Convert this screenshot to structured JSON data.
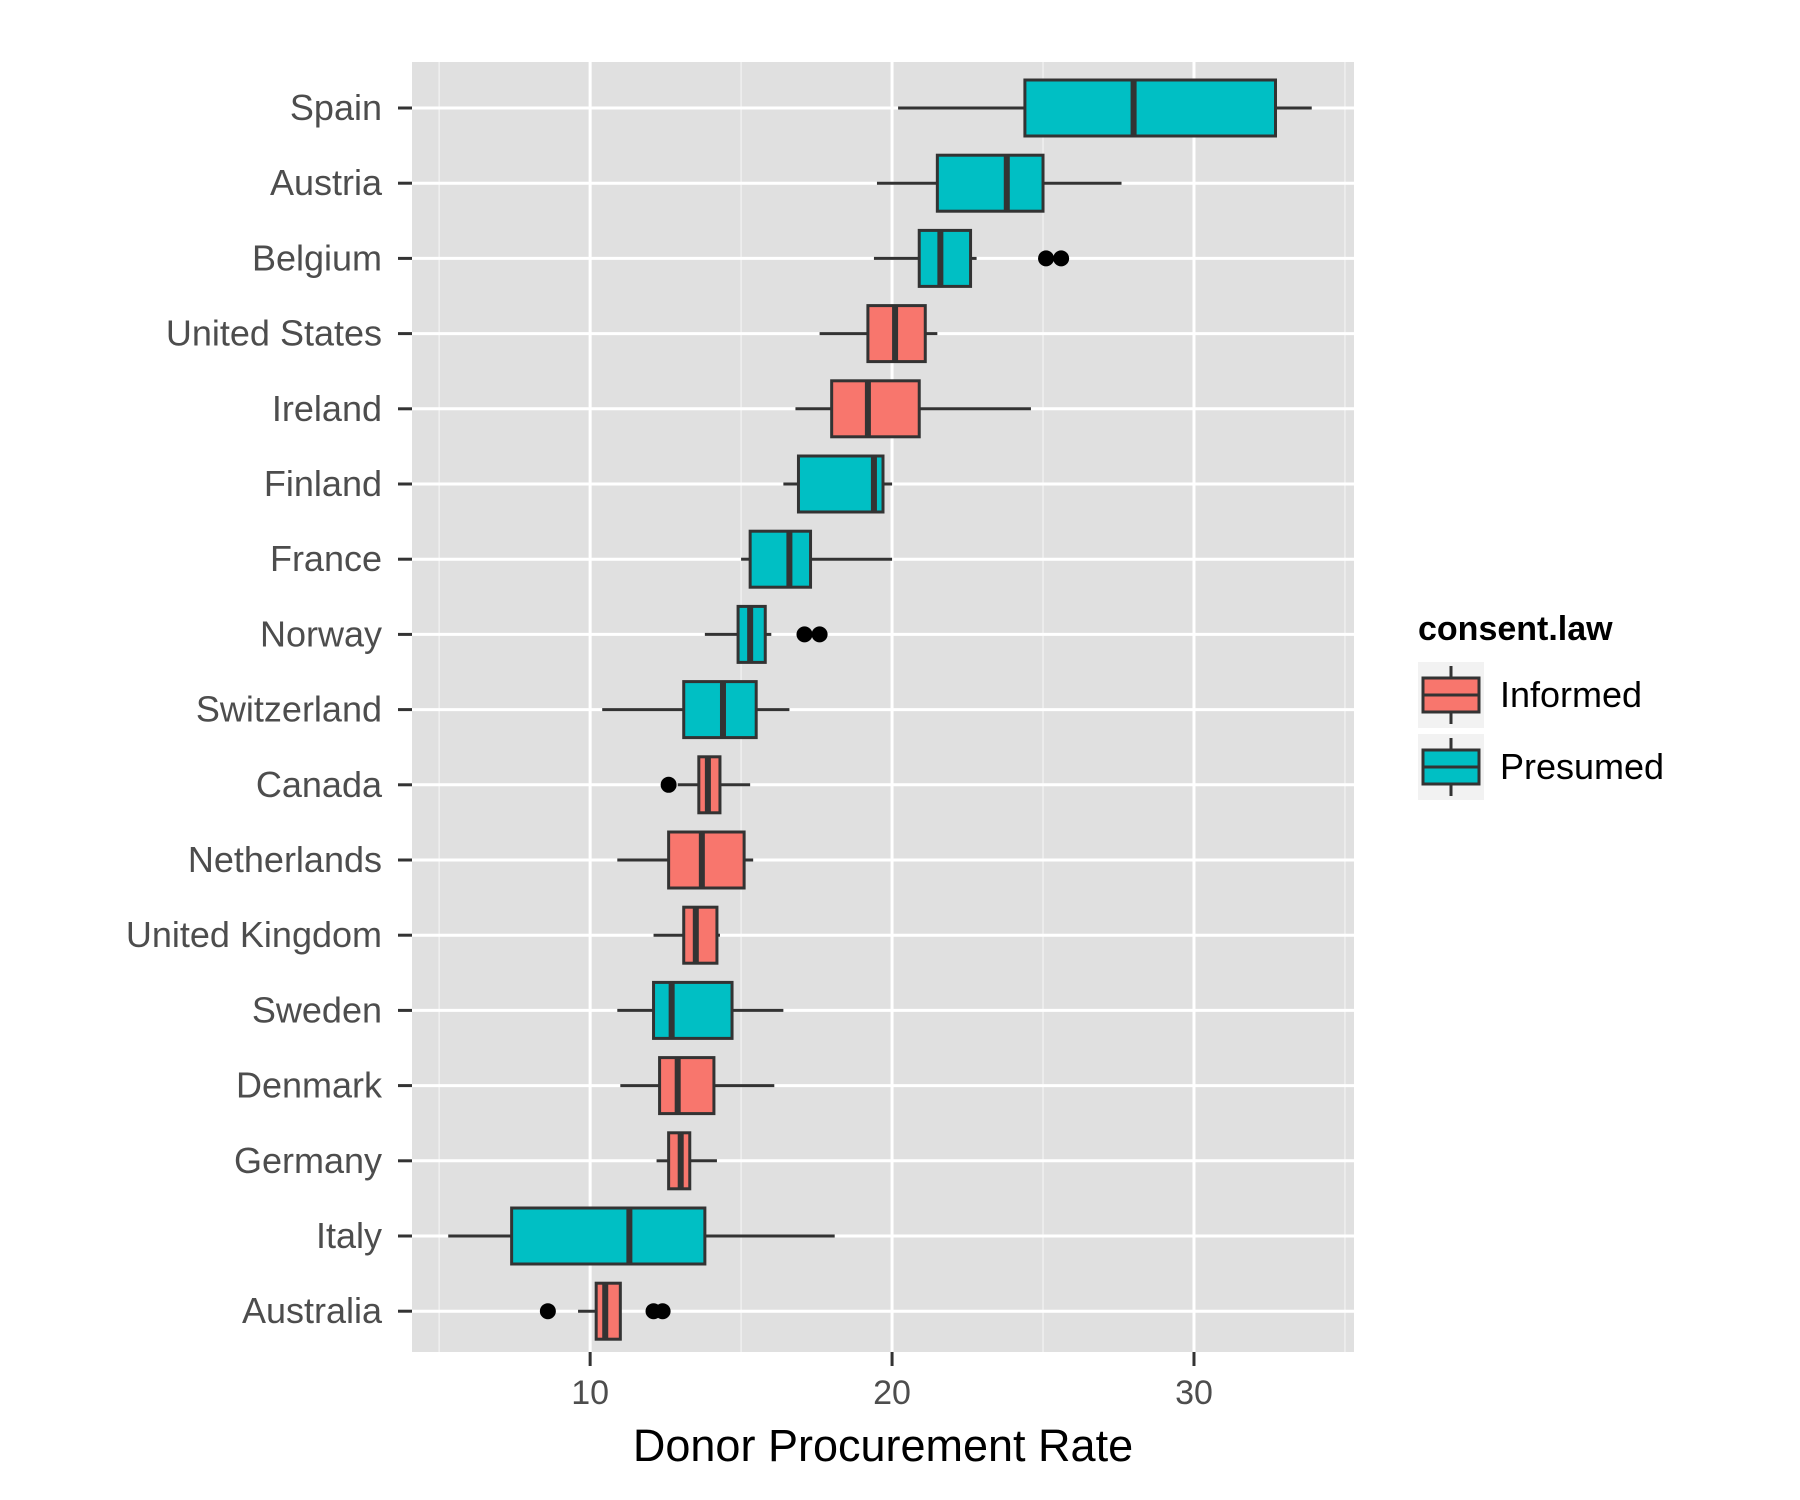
{
  "chart_data": {
    "type": "boxplot",
    "orientation": "horizontal",
    "xlabel": "Donor Procurement Rate",
    "ylabel": "",
    "xlim": [
      4.1,
      35.3
    ],
    "xticks": [
      10,
      20,
      30
    ],
    "xtick_labels": [
      "10",
      "20",
      "30"
    ],
    "grid": true,
    "legend": {
      "title": "consent.law",
      "position": "right",
      "entries": [
        {
          "key": "Informed",
          "label": "Informed"
        },
        {
          "key": "Presumed",
          "label": "Presumed"
        }
      ]
    },
    "colors": {
      "Informed": "#f8766d",
      "Presumed": "#00bfc4",
      "panel_background": "#e0e0e0",
      "grid_major": "#ffffff",
      "grid_minor": "#efefef",
      "outline": "#333333"
    },
    "categories": [
      "Spain",
      "Austria",
      "Belgium",
      "United States",
      "Ireland",
      "Finland",
      "France",
      "Norway",
      "Switzerland",
      "Canada",
      "Netherlands",
      "United Kingdom",
      "Sweden",
      "Denmark",
      "Germany",
      "Italy",
      "Australia"
    ],
    "boxes": [
      {
        "country": "Spain",
        "group": "Presumed",
        "min": 20.2,
        "q1": 24.4,
        "median": 28.0,
        "q3": 32.7,
        "max": 33.9,
        "outliers": []
      },
      {
        "country": "Austria",
        "group": "Presumed",
        "min": 19.5,
        "q1": 21.5,
        "median": 23.8,
        "q3": 25.0,
        "max": 27.6,
        "outliers": []
      },
      {
        "country": "Belgium",
        "group": "Presumed",
        "min": 19.4,
        "q1": 20.9,
        "median": 21.6,
        "q3": 22.6,
        "max": 22.8,
        "outliers": [
          25.1,
          25.6
        ]
      },
      {
        "country": "United States",
        "group": "Informed",
        "min": 17.6,
        "q1": 19.2,
        "median": 20.1,
        "q3": 21.1,
        "max": 21.5,
        "outliers": []
      },
      {
        "country": "Ireland",
        "group": "Informed",
        "min": 16.8,
        "q1": 18.0,
        "median": 19.2,
        "q3": 20.9,
        "max": 24.6,
        "outliers": []
      },
      {
        "country": "Finland",
        "group": "Presumed",
        "min": 16.4,
        "q1": 16.9,
        "median": 19.4,
        "q3": 19.7,
        "max": 20.0,
        "outliers": []
      },
      {
        "country": "France",
        "group": "Presumed",
        "min": 15.0,
        "q1": 15.3,
        "median": 16.6,
        "q3": 17.3,
        "max": 20.0,
        "outliers": []
      },
      {
        "country": "Norway",
        "group": "Presumed",
        "min": 13.8,
        "q1": 14.9,
        "median": 15.3,
        "q3": 15.8,
        "max": 16.0,
        "outliers": [
          17.1,
          17.6
        ]
      },
      {
        "country": "Switzerland",
        "group": "Presumed",
        "min": 10.4,
        "q1": 13.1,
        "median": 14.4,
        "q3": 15.5,
        "max": 16.6,
        "outliers": []
      },
      {
        "country": "Canada",
        "group": "Informed",
        "min": 12.9,
        "q1": 13.6,
        "median": 13.9,
        "q3": 14.3,
        "max": 15.3,
        "outliers": [
          12.6
        ]
      },
      {
        "country": "Netherlands",
        "group": "Informed",
        "min": 10.9,
        "q1": 12.6,
        "median": 13.7,
        "q3": 15.1,
        "max": 15.4,
        "outliers": []
      },
      {
        "country": "United Kingdom",
        "group": "Informed",
        "min": 12.1,
        "q1": 13.1,
        "median": 13.5,
        "q3": 14.2,
        "max": 14.3,
        "outliers": []
      },
      {
        "country": "Sweden",
        "group": "Presumed",
        "min": 10.9,
        "q1": 12.1,
        "median": 12.7,
        "q3": 14.7,
        "max": 16.4,
        "outliers": []
      },
      {
        "country": "Denmark",
        "group": "Informed",
        "min": 11.0,
        "q1": 12.3,
        "median": 12.9,
        "q3": 14.1,
        "max": 16.1,
        "outliers": []
      },
      {
        "country": "Germany",
        "group": "Informed",
        "min": 12.2,
        "q1": 12.6,
        "median": 13.0,
        "q3": 13.3,
        "max": 14.2,
        "outliers": []
      },
      {
        "country": "Italy",
        "group": "Presumed",
        "min": 5.3,
        "q1": 7.4,
        "median": 11.3,
        "q3": 13.8,
        "max": 18.1,
        "outliers": []
      },
      {
        "country": "Australia",
        "group": "Informed",
        "min": 9.6,
        "q1": 10.2,
        "median": 10.5,
        "q3": 11.0,
        "max": 11.0,
        "outliers": [
          8.6,
          12.1,
          12.4
        ]
      }
    ]
  }
}
